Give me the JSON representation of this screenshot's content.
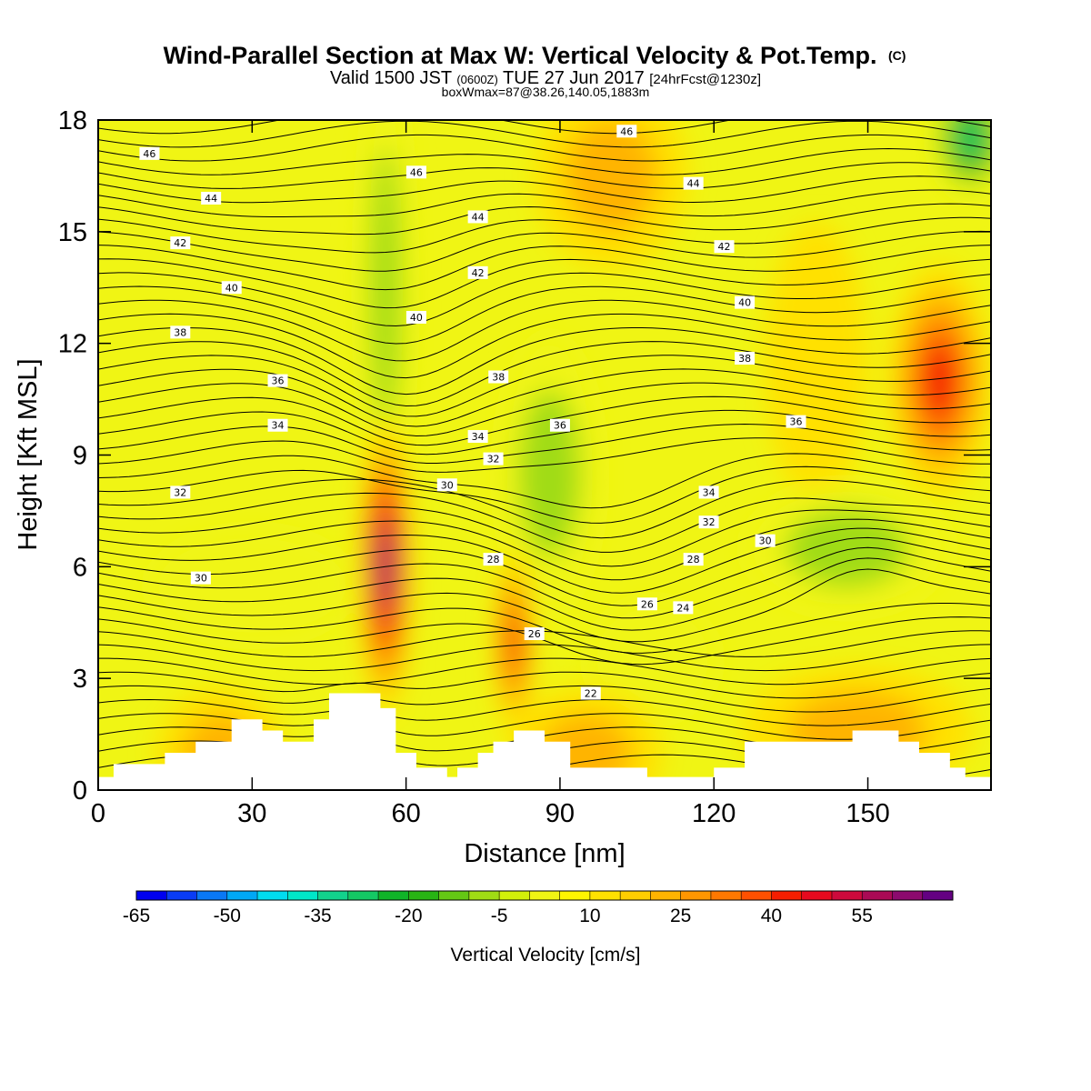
{
  "chart_data": {
    "type": "heatmap",
    "title": "Wind-Parallel Section at Max W: Vertical Velocity & Pot.Temp.",
    "title_mark": "(C)",
    "subtitle": {
      "prefix": "Valid 1500 JST ",
      "utc": "(0600Z)",
      "date": " TUE 27 Jun 2017 ",
      "fcst": "[24hrFcst@1230z]"
    },
    "subtitle2": "boxWmax=87@38.26,140.05,1883m",
    "xlabel": "Distance [nm]",
    "ylabel": "Height [Kft MSL]",
    "xlim": [
      0,
      174
    ],
    "ylim": [
      0,
      18
    ],
    "x_ticks": [
      0,
      30,
      60,
      90,
      120,
      150
    ],
    "y_ticks": [
      0,
      3,
      6,
      9,
      12,
      15,
      18
    ],
    "colorbar": {
      "label": "Vertical Velocity [cm/s]",
      "ticks": [
        "-65",
        "-50",
        "-35",
        "-20",
        "-5",
        "10",
        "25",
        "40",
        "55"
      ],
      "colors": [
        "#0000f0",
        "#0a3cf5",
        "#0a78f5",
        "#00a8f5",
        "#00dcf0",
        "#00e6c8",
        "#12d28c",
        "#14c864",
        "#10b428",
        "#28b414",
        "#64c814",
        "#a0dc14",
        "#d2f00a",
        "#f0f514",
        "#fff500",
        "#ffe100",
        "#ffcd00",
        "#ffb400",
        "#ff9600",
        "#ff7800",
        "#ff5000",
        "#f51e00",
        "#e60a1e",
        "#cd0a3c",
        "#aa0a55",
        "#8c0a6e",
        "#640082"
      ]
    },
    "w_cells": [
      {
        "x": 56,
        "y": 6.0,
        "rx": 4,
        "ry": 3.2,
        "w": 55
      },
      {
        "x": 81,
        "y": 4.0,
        "rx": 3,
        "ry": 2.0,
        "w": 40
      },
      {
        "x": 164,
        "y": 11.0,
        "rx": 8,
        "ry": 2.5,
        "w": 40
      },
      {
        "x": 100,
        "y": 16.5,
        "rx": 12,
        "ry": 2.0,
        "w": 15
      },
      {
        "x": 24,
        "y": 1.0,
        "rx": 10,
        "ry": 1.4,
        "w": 20
      },
      {
        "x": 95,
        "y": 1.0,
        "rx": 12,
        "ry": 1.4,
        "w": 20
      },
      {
        "x": 148,
        "y": 1.6,
        "rx": 18,
        "ry": 1.4,
        "w": 15
      },
      {
        "x": 140,
        "y": 11.5,
        "rx": 8,
        "ry": 3.0,
        "w": 12
      },
      {
        "x": 56,
        "y": 13.5,
        "rx": 4,
        "ry": 5.0,
        "w": -22
      },
      {
        "x": 88,
        "y": 8.5,
        "rx": 8,
        "ry": 3.0,
        "w": -17
      },
      {
        "x": 146,
        "y": 6.5,
        "rx": 16,
        "ry": 1.4,
        "w": -20
      },
      {
        "x": 170,
        "y": 17.5,
        "rx": 6,
        "ry": 1.3,
        "w": -35
      },
      {
        "x": 30,
        "y": 5.5,
        "rx": 16,
        "ry": 1.2,
        "w": -8
      },
      {
        "x": 108,
        "y": 3.5,
        "rx": 10,
        "ry": 1.3,
        "w": -10
      }
    ],
    "terrain": [
      [
        0,
        0.35
      ],
      [
        3,
        0.35
      ],
      [
        3,
        0.7
      ],
      [
        13,
        0.7
      ],
      [
        13,
        1.0
      ],
      [
        19,
        1.0
      ],
      [
        19,
        1.3
      ],
      [
        26,
        1.3
      ],
      [
        26,
        1.9
      ],
      [
        32,
        1.9
      ],
      [
        32,
        1.6
      ],
      [
        36,
        1.6
      ],
      [
        36,
        1.3
      ],
      [
        42,
        1.3
      ],
      [
        42,
        1.9
      ],
      [
        45,
        1.9
      ],
      [
        45,
        2.6
      ],
      [
        55,
        2.6
      ],
      [
        55,
        2.2
      ],
      [
        58,
        2.2
      ],
      [
        58,
        1.0
      ],
      [
        62,
        1.0
      ],
      [
        62,
        0.6
      ],
      [
        68,
        0.6
      ],
      [
        68,
        0.35
      ],
      [
        70,
        0.35
      ],
      [
        70,
        0.6
      ],
      [
        74,
        0.6
      ],
      [
        74,
        1.0
      ],
      [
        77,
        1.0
      ],
      [
        77,
        1.3
      ],
      [
        81,
        1.3
      ],
      [
        81,
        1.6
      ],
      [
        87,
        1.6
      ],
      [
        87,
        1.3
      ],
      [
        92,
        1.3
      ],
      [
        92,
        0.6
      ],
      [
        107,
        0.6
      ],
      [
        107,
        0.35
      ],
      [
        120,
        0.35
      ],
      [
        120,
        0.6
      ],
      [
        126,
        0.6
      ],
      [
        126,
        1.3
      ],
      [
        147,
        1.3
      ],
      [
        147,
        1.6
      ],
      [
        156,
        1.6
      ],
      [
        156,
        1.3
      ],
      [
        160,
        1.3
      ],
      [
        160,
        1.0
      ],
      [
        166,
        1.0
      ],
      [
        166,
        0.6
      ],
      [
        169,
        0.6
      ],
      [
        169,
        0.35
      ],
      [
        174,
        0.35
      ]
    ],
    "isotherm_labels": [
      {
        "text": "46",
        "x": 10,
        "y": 17.1
      },
      {
        "text": "44",
        "x": 22,
        "y": 15.9
      },
      {
        "text": "42",
        "x": 16,
        "y": 14.7
      },
      {
        "text": "40",
        "x": 26,
        "y": 13.5
      },
      {
        "text": "38",
        "x": 16,
        "y": 12.3
      },
      {
        "text": "36",
        "x": 35,
        "y": 11.0
      },
      {
        "text": "34",
        "x": 35,
        "y": 9.8
      },
      {
        "text": "32",
        "x": 16,
        "y": 8.0
      },
      {
        "text": "30",
        "x": 20,
        "y": 5.7
      },
      {
        "text": "46",
        "x": 62,
        "y": 16.6
      },
      {
        "text": "44",
        "x": 74,
        "y": 15.4
      },
      {
        "text": "42",
        "x": 74,
        "y": 13.9
      },
      {
        "text": "40",
        "x": 62,
        "y": 12.7
      },
      {
        "text": "38",
        "x": 78,
        "y": 11.1
      },
      {
        "text": "34",
        "x": 74,
        "y": 9.5
      },
      {
        "text": "32",
        "x": 77,
        "y": 8.9
      },
      {
        "text": "30",
        "x": 68,
        "y": 8.2
      },
      {
        "text": "28",
        "x": 77,
        "y": 6.2
      },
      {
        "text": "26",
        "x": 85,
        "y": 4.2
      },
      {
        "text": "22",
        "x": 96,
        "y": 2.6
      },
      {
        "text": "36",
        "x": 90,
        "y": 9.8
      },
      {
        "text": "46",
        "x": 103,
        "y": 17.7
      },
      {
        "text": "44",
        "x": 116,
        "y": 16.3
      },
      {
        "text": "42",
        "x": 122,
        "y": 14.6
      },
      {
        "text": "40",
        "x": 126,
        "y": 13.1
      },
      {
        "text": "38",
        "x": 126,
        "y": 11.6
      },
      {
        "text": "36",
        "x": 136,
        "y": 9.9
      },
      {
        "text": "34",
        "x": 119,
        "y": 8.0
      },
      {
        "text": "32",
        "x": 119,
        "y": 7.2
      },
      {
        "text": "30",
        "x": 130,
        "y": 6.7
      },
      {
        "text": "28",
        "x": 116,
        "y": 6.2
      },
      {
        "text": "26",
        "x": 107,
        "y": 5.0
      },
      {
        "text": "24",
        "x": 114,
        "y": 4.9
      }
    ]
  }
}
